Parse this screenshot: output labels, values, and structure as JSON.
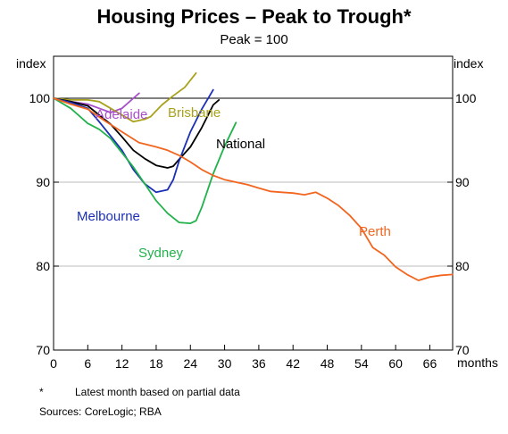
{
  "chart_data": {
    "type": "line",
    "title": "Housing Prices – Peak to Trough*",
    "subtitle": "Peak = 100",
    "ylabel_left": "index",
    "ylabel_right": "index",
    "xlabel": "months",
    "xlim": [
      0,
      70
    ],
    "ylim": [
      70,
      105
    ],
    "x_ticks": [
      0,
      6,
      12,
      18,
      24,
      30,
      36,
      42,
      48,
      54,
      60,
      66
    ],
    "y_ticks": [
      70,
      80,
      90,
      100
    ],
    "grid": "horizontal",
    "reference_line": 100,
    "series": [
      {
        "name": "Adelaide",
        "color": "#a64fc9",
        "points": [
          [
            0,
            100
          ],
          [
            2,
            99.7
          ],
          [
            4,
            99.5
          ],
          [
            6,
            99.3
          ],
          [
            8,
            98.8
          ],
          [
            10,
            98.3
          ],
          [
            12,
            98.8
          ],
          [
            14,
            100
          ],
          [
            15,
            100.6
          ]
        ]
      },
      {
        "name": "Brisbane",
        "color": "#a9a21c",
        "points": [
          [
            0,
            100
          ],
          [
            3,
            99.8
          ],
          [
            6,
            99.8
          ],
          [
            8,
            99.6
          ],
          [
            10,
            98.8
          ],
          [
            12,
            98
          ],
          [
            14,
            97.2
          ],
          [
            16,
            97.5
          ],
          [
            17,
            97.8
          ],
          [
            19,
            99.2
          ],
          [
            21,
            100.3
          ],
          [
            23,
            101.3
          ],
          [
            25,
            103
          ]
        ]
      },
      {
        "name": "National",
        "color": "#000000",
        "points": [
          [
            0,
            100
          ],
          [
            3,
            99.6
          ],
          [
            6,
            99.1
          ],
          [
            8,
            98
          ],
          [
            10,
            96.9
          ],
          [
            12,
            95.4
          ],
          [
            14,
            93.8
          ],
          [
            16,
            92.8
          ],
          [
            18,
            92
          ],
          [
            20,
            91.7
          ],
          [
            21,
            91.9
          ],
          [
            22,
            92.7
          ],
          [
            24,
            94.2
          ],
          [
            26,
            96.5
          ],
          [
            28,
            99.2
          ],
          [
            29,
            99.8
          ]
        ]
      },
      {
        "name": "Melbourne",
        "color": "#1b2fb5",
        "points": [
          [
            0,
            100
          ],
          [
            3,
            99.5
          ],
          [
            6,
            98.8
          ],
          [
            8,
            97.2
          ],
          [
            10,
            95.5
          ],
          [
            12,
            93.8
          ],
          [
            14,
            91.5
          ],
          [
            16,
            89.8
          ],
          [
            18,
            88.8
          ],
          [
            20,
            89.1
          ],
          [
            21,
            90.3
          ],
          [
            22,
            92.5
          ],
          [
            24,
            96
          ],
          [
            26,
            98.7
          ],
          [
            28,
            101
          ]
        ]
      },
      {
        "name": "Sydney",
        "color": "#22b24c",
        "points": [
          [
            0,
            100
          ],
          [
            3,
            98.8
          ],
          [
            6,
            97
          ],
          [
            8,
            96.3
          ],
          [
            10,
            95.2
          ],
          [
            12,
            93.5
          ],
          [
            14,
            91.8
          ],
          [
            16,
            89.8
          ],
          [
            18,
            87.8
          ],
          [
            20,
            86.3
          ],
          [
            22,
            85.2
          ],
          [
            24,
            85.1
          ],
          [
            25,
            85.4
          ],
          [
            26,
            87
          ],
          [
            28,
            91
          ],
          [
            30,
            94.3
          ],
          [
            32,
            97.1
          ]
        ]
      },
      {
        "name": "Perth",
        "color": "#f2651f",
        "points": [
          [
            0,
            100
          ],
          [
            3,
            99.3
          ],
          [
            6,
            98.7
          ],
          [
            9,
            97.3
          ],
          [
            12,
            96
          ],
          [
            15,
            94.7
          ],
          [
            18,
            94.2
          ],
          [
            20,
            93.8
          ],
          [
            22,
            93.2
          ],
          [
            24,
            92.4
          ],
          [
            26,
            91.5
          ],
          [
            28,
            90.8
          ],
          [
            30,
            90.3
          ],
          [
            32,
            90
          ],
          [
            34,
            89.7
          ],
          [
            36,
            89.3
          ],
          [
            38,
            88.9
          ],
          [
            40,
            88.8
          ],
          [
            42,
            88.7
          ],
          [
            44,
            88.5
          ],
          [
            46,
            88.8
          ],
          [
            48,
            88.1
          ],
          [
            50,
            87.2
          ],
          [
            52,
            86
          ],
          [
            54,
            84.5
          ],
          [
            56,
            82.2
          ],
          [
            58,
            81.3
          ],
          [
            60,
            79.9
          ],
          [
            62,
            79
          ],
          [
            64,
            78.3
          ],
          [
            66,
            78.7
          ],
          [
            68,
            78.9
          ],
          [
            70,
            79
          ]
        ]
      }
    ]
  },
  "labels": {
    "adelaide": "Adelaide",
    "brisbane": "Brisbane",
    "national": "National",
    "melbourne": "Melbourne",
    "sydney": "Sydney",
    "perth": "Perth"
  },
  "notes": {
    "footnote_marker": "*",
    "footnote_text": "Latest month based on partial data",
    "sources": "Sources: CoreLogic; RBA"
  }
}
